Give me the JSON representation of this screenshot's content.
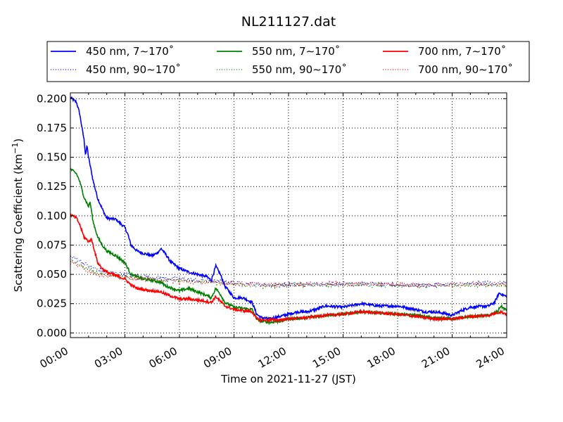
{
  "chart_data": {
    "type": "line",
    "title": "NL211127.dat",
    "xlabel": "Time on 2021-11-27 (JST)",
    "ylabel": "Scattering Coefficient (km",
    "ylabel_sup": "−1",
    "ylabel_close": ")",
    "xlim": [
      "00:00",
      "24:00"
    ],
    "ylim": [
      -0.004,
      0.205
    ],
    "grid": true,
    "legend_position": "top",
    "x_ticks": [
      "00:00",
      "03:00",
      "06:00",
      "09:00",
      "12:00",
      "15:00",
      "18:00",
      "21:00",
      "24:00"
    ],
    "y_ticks": [
      "0.000",
      "0.025",
      "0.050",
      "0.075",
      "0.100",
      "0.125",
      "0.150",
      "0.175",
      "0.200"
    ],
    "series": [
      {
        "name": "450 nm, 7∼170˚",
        "color": "#0000ff",
        "style": "solid",
        "points": [
          [
            "00:00",
            0.201
          ],
          [
            "00:20",
            0.197
          ],
          [
            "00:30",
            0.188
          ],
          [
            "00:45",
            0.165
          ],
          [
            "00:50",
            0.152
          ],
          [
            "00:55",
            0.16
          ],
          [
            "01:00",
            0.15
          ],
          [
            "01:15",
            0.13
          ],
          [
            "01:30",
            0.115
          ],
          [
            "01:45",
            0.106
          ],
          [
            "02:00",
            0.098
          ],
          [
            "02:30",
            0.097
          ],
          [
            "03:00",
            0.09
          ],
          [
            "03:10",
            0.084
          ],
          [
            "03:20",
            0.075
          ],
          [
            "03:40",
            0.07
          ],
          [
            "04:00",
            0.068
          ],
          [
            "04:30",
            0.066
          ],
          [
            "04:45",
            0.068
          ],
          [
            "05:00",
            0.072
          ],
          [
            "05:15",
            0.067
          ],
          [
            "05:30",
            0.061
          ],
          [
            "06:00",
            0.055
          ],
          [
            "06:30",
            0.052
          ],
          [
            "07:00",
            0.05
          ],
          [
            "07:30",
            0.048
          ],
          [
            "07:45",
            0.045
          ],
          [
            "08:00",
            0.057
          ],
          [
            "08:15",
            0.05
          ],
          [
            "08:30",
            0.04
          ],
          [
            "08:45",
            0.035
          ],
          [
            "09:00",
            0.03
          ],
          [
            "09:30",
            0.03
          ],
          [
            "10:00",
            0.026
          ],
          [
            "10:15",
            0.016
          ],
          [
            "10:30",
            0.013
          ],
          [
            "11:00",
            0.012
          ],
          [
            "11:30",
            0.014
          ],
          [
            "12:00",
            0.016
          ],
          [
            "12:30",
            0.018
          ],
          [
            "13:00",
            0.018
          ],
          [
            "13:30",
            0.02
          ],
          [
            "14:00",
            0.023
          ],
          [
            "15:00",
            0.022
          ],
          [
            "16:00",
            0.025
          ],
          [
            "17:00",
            0.023
          ],
          [
            "18:00",
            0.023
          ],
          [
            "19:00",
            0.02
          ],
          [
            "19:30",
            0.018
          ],
          [
            "20:00",
            0.018
          ],
          [
            "20:30",
            0.017
          ],
          [
            "21:00",
            0.015
          ],
          [
            "21:30",
            0.019
          ],
          [
            "22:00",
            0.022
          ],
          [
            "23:00",
            0.023
          ],
          [
            "23:20",
            0.026
          ],
          [
            "23:35",
            0.034
          ],
          [
            "24:00",
            0.031
          ]
        ]
      },
      {
        "name": "450 nm, 90∼170˚",
        "color": "#0000ff",
        "style": "dotted",
        "points": [
          [
            "00:00",
            0.065
          ],
          [
            "00:30",
            0.062
          ],
          [
            "01:00",
            0.057
          ],
          [
            "01:30",
            0.054
          ],
          [
            "02:00",
            0.052
          ],
          [
            "03:00",
            0.05
          ],
          [
            "04:00",
            0.048
          ],
          [
            "05:00",
            0.047
          ],
          [
            "06:00",
            0.046
          ],
          [
            "07:00",
            0.045
          ],
          [
            "08:00",
            0.044
          ],
          [
            "09:00",
            0.043
          ],
          [
            "10:00",
            0.042
          ],
          [
            "11:00",
            0.041
          ],
          [
            "12:00",
            0.041
          ],
          [
            "14:00",
            0.042
          ],
          [
            "16:00",
            0.042
          ],
          [
            "18:00",
            0.041
          ],
          [
            "20:00",
            0.041
          ],
          [
            "22:00",
            0.042
          ],
          [
            "24:00",
            0.043
          ]
        ]
      },
      {
        "name": "550 nm, 7∼170˚",
        "color": "#008000",
        "style": "solid",
        "points": [
          [
            "00:00",
            0.14
          ],
          [
            "00:20",
            0.136
          ],
          [
            "00:30",
            0.13
          ],
          [
            "00:45",
            0.116
          ],
          [
            "01:00",
            0.108
          ],
          [
            "01:05",
            0.112
          ],
          [
            "01:15",
            0.095
          ],
          [
            "01:30",
            0.082
          ],
          [
            "01:45",
            0.075
          ],
          [
            "02:00",
            0.07
          ],
          [
            "02:30",
            0.066
          ],
          [
            "03:00",
            0.06
          ],
          [
            "03:20",
            0.05
          ],
          [
            "03:40",
            0.048
          ],
          [
            "04:00",
            0.046
          ],
          [
            "04:30",
            0.045
          ],
          [
            "05:00",
            0.043
          ],
          [
            "05:15",
            0.04
          ],
          [
            "06:00",
            0.036
          ],
          [
            "06:30",
            0.038
          ],
          [
            "07:00",
            0.035
          ],
          [
            "07:30",
            0.032
          ],
          [
            "07:45",
            0.03
          ],
          [
            "08:00",
            0.038
          ],
          [
            "08:15",
            0.033
          ],
          [
            "08:30",
            0.026
          ],
          [
            "09:00",
            0.022
          ],
          [
            "09:30",
            0.021
          ],
          [
            "10:00",
            0.02
          ],
          [
            "10:15",
            0.012
          ],
          [
            "10:30",
            0.01
          ],
          [
            "11:00",
            0.009
          ],
          [
            "11:30",
            0.01
          ],
          [
            "12:00",
            0.012
          ],
          [
            "13:00",
            0.013
          ],
          [
            "14:00",
            0.015
          ],
          [
            "15:00",
            0.016
          ],
          [
            "16:00",
            0.018
          ],
          [
            "17:00",
            0.017
          ],
          [
            "18:00",
            0.016
          ],
          [
            "19:00",
            0.015
          ],
          [
            "20:00",
            0.013
          ],
          [
            "21:00",
            0.012
          ],
          [
            "22:00",
            0.014
          ],
          [
            "23:00",
            0.015
          ],
          [
            "23:30",
            0.018
          ],
          [
            "23:40",
            0.023
          ],
          [
            "24:00",
            0.019
          ]
        ]
      },
      {
        "name": "550 nm, 90∼170˚",
        "color": "#008000",
        "style": "dotted",
        "points": [
          [
            "00:00",
            0.062
          ],
          [
            "00:30",
            0.058
          ],
          [
            "01:00",
            0.054
          ],
          [
            "01:30",
            0.051
          ],
          [
            "02:00",
            0.049
          ],
          [
            "03:00",
            0.048
          ],
          [
            "04:00",
            0.046
          ],
          [
            "05:00",
            0.045
          ],
          [
            "06:00",
            0.045
          ],
          [
            "07:00",
            0.044
          ],
          [
            "08:00",
            0.043
          ],
          [
            "09:00",
            0.042
          ],
          [
            "10:00",
            0.04
          ],
          [
            "11:00",
            0.04
          ],
          [
            "12:00",
            0.041
          ],
          [
            "14:00",
            0.041
          ],
          [
            "16:00",
            0.041
          ],
          [
            "18:00",
            0.04
          ],
          [
            "20:00",
            0.04
          ],
          [
            "22:00",
            0.041
          ],
          [
            "24:00",
            0.041
          ]
        ]
      },
      {
        "name": "700 nm, 7∼170˚",
        "color": "#ff0000",
        "style": "solid",
        "points": [
          [
            "00:00",
            0.101
          ],
          [
            "00:20",
            0.098
          ],
          [
            "00:30",
            0.093
          ],
          [
            "00:45",
            0.082
          ],
          [
            "01:00",
            0.078
          ],
          [
            "01:10",
            0.08
          ],
          [
            "01:20",
            0.07
          ],
          [
            "01:30",
            0.06
          ],
          [
            "01:45",
            0.055
          ],
          [
            "02:00",
            0.052
          ],
          [
            "02:30",
            0.049
          ],
          [
            "03:00",
            0.046
          ],
          [
            "03:20",
            0.041
          ],
          [
            "03:40",
            0.038
          ],
          [
            "04:00",
            0.037
          ],
          [
            "04:30",
            0.036
          ],
          [
            "05:00",
            0.035
          ],
          [
            "05:15",
            0.033
          ],
          [
            "06:00",
            0.029
          ],
          [
            "06:30",
            0.029
          ],
          [
            "07:00",
            0.028
          ],
          [
            "07:30",
            0.027
          ],
          [
            "07:45",
            0.026
          ],
          [
            "08:00",
            0.031
          ],
          [
            "08:15",
            0.027
          ],
          [
            "08:30",
            0.023
          ],
          [
            "09:00",
            0.02
          ],
          [
            "09:30",
            0.019
          ],
          [
            "10:00",
            0.018
          ],
          [
            "10:15",
            0.012
          ],
          [
            "10:30",
            0.011
          ],
          [
            "11:00",
            0.011
          ],
          [
            "11:30",
            0.011
          ],
          [
            "12:00",
            0.012
          ],
          [
            "13:00",
            0.013
          ],
          [
            "14:00",
            0.015
          ],
          [
            "15:00",
            0.016
          ],
          [
            "16:00",
            0.018
          ],
          [
            "17:00",
            0.017
          ],
          [
            "18:00",
            0.016
          ],
          [
            "19:00",
            0.014
          ],
          [
            "20:00",
            0.012
          ],
          [
            "21:00",
            0.012
          ],
          [
            "22:00",
            0.014
          ],
          [
            "23:00",
            0.015
          ],
          [
            "23:40",
            0.018
          ],
          [
            "24:00",
            0.016
          ]
        ]
      },
      {
        "name": "700 nm, 90∼170˚",
        "color": "#ff0000",
        "style": "dotted",
        "points": [
          [
            "00:00",
            0.06
          ],
          [
            "00:30",
            0.057
          ],
          [
            "01:00",
            0.053
          ],
          [
            "01:30",
            0.05
          ],
          [
            "02:00",
            0.049
          ],
          [
            "03:00",
            0.047
          ],
          [
            "04:00",
            0.046
          ],
          [
            "05:00",
            0.045
          ],
          [
            "06:00",
            0.044
          ],
          [
            "07:00",
            0.043
          ],
          [
            "08:00",
            0.043
          ],
          [
            "09:00",
            0.042
          ],
          [
            "10:00",
            0.042
          ],
          [
            "11:00",
            0.041
          ],
          [
            "12:00",
            0.041
          ],
          [
            "14:00",
            0.042
          ],
          [
            "16:00",
            0.042
          ],
          [
            "18:00",
            0.041
          ],
          [
            "20:00",
            0.041
          ],
          [
            "22:00",
            0.042
          ],
          [
            "24:00",
            0.042
          ]
        ]
      }
    ]
  }
}
